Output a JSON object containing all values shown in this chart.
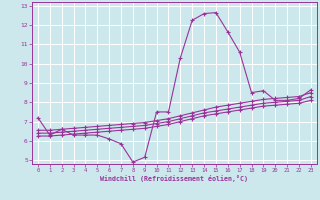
{
  "xlabel": "Windchill (Refroidissement éolien,°C)",
  "bg_color": "#cce8ec",
  "line_color": "#993399",
  "grid_color": "#ffffff",
  "xlim": [
    -0.5,
    23.5
  ],
  "ylim": [
    4.8,
    13.2
  ],
  "xticks": [
    0,
    1,
    2,
    3,
    4,
    5,
    6,
    7,
    8,
    9,
    10,
    11,
    12,
    13,
    14,
    15,
    16,
    17,
    18,
    19,
    20,
    21,
    22,
    23
  ],
  "yticks": [
    5,
    6,
    7,
    8,
    9,
    10,
    11,
    12,
    13
  ],
  "line1_x": [
    0,
    1,
    2,
    3,
    4,
    5,
    6,
    7,
    8,
    9,
    10,
    11,
    12,
    13,
    14,
    15,
    16,
    17,
    18,
    19,
    20,
    21,
    22,
    23
  ],
  "line1_y": [
    7.2,
    6.3,
    6.6,
    6.3,
    6.3,
    6.3,
    6.1,
    5.85,
    4.9,
    5.15,
    7.5,
    7.5,
    10.3,
    12.25,
    12.6,
    12.65,
    11.65,
    10.6,
    8.5,
    8.6,
    8.1,
    8.1,
    8.2,
    8.65
  ],
  "line2_x": [
    0,
    1,
    2,
    3,
    4,
    5,
    6,
    7,
    8,
    9,
    10,
    11,
    12,
    13,
    14,
    15,
    16,
    17,
    18,
    19,
    20,
    21,
    22,
    23
  ],
  "line2_y": [
    6.55,
    6.55,
    6.6,
    6.65,
    6.7,
    6.75,
    6.8,
    6.85,
    6.9,
    6.95,
    7.05,
    7.15,
    7.3,
    7.45,
    7.6,
    7.75,
    7.85,
    7.95,
    8.05,
    8.15,
    8.2,
    8.25,
    8.3,
    8.5
  ],
  "line3_x": [
    0,
    1,
    2,
    3,
    4,
    5,
    6,
    7,
    8,
    9,
    10,
    11,
    12,
    13,
    14,
    15,
    16,
    17,
    18,
    19,
    20,
    21,
    22,
    23
  ],
  "line3_y": [
    6.4,
    6.4,
    6.45,
    6.5,
    6.55,
    6.6,
    6.65,
    6.7,
    6.75,
    6.8,
    6.9,
    7.0,
    7.15,
    7.3,
    7.45,
    7.55,
    7.65,
    7.75,
    7.85,
    7.95,
    8.0,
    8.05,
    8.1,
    8.3
  ],
  "line4_x": [
    0,
    1,
    2,
    3,
    4,
    5,
    6,
    7,
    8,
    9,
    10,
    11,
    12,
    13,
    14,
    15,
    16,
    17,
    18,
    19,
    20,
    21,
    22,
    23
  ],
  "line4_y": [
    6.25,
    6.25,
    6.3,
    6.35,
    6.4,
    6.45,
    6.5,
    6.55,
    6.6,
    6.65,
    6.75,
    6.85,
    7.0,
    7.15,
    7.3,
    7.4,
    7.5,
    7.6,
    7.7,
    7.8,
    7.85,
    7.9,
    7.95,
    8.1
  ]
}
